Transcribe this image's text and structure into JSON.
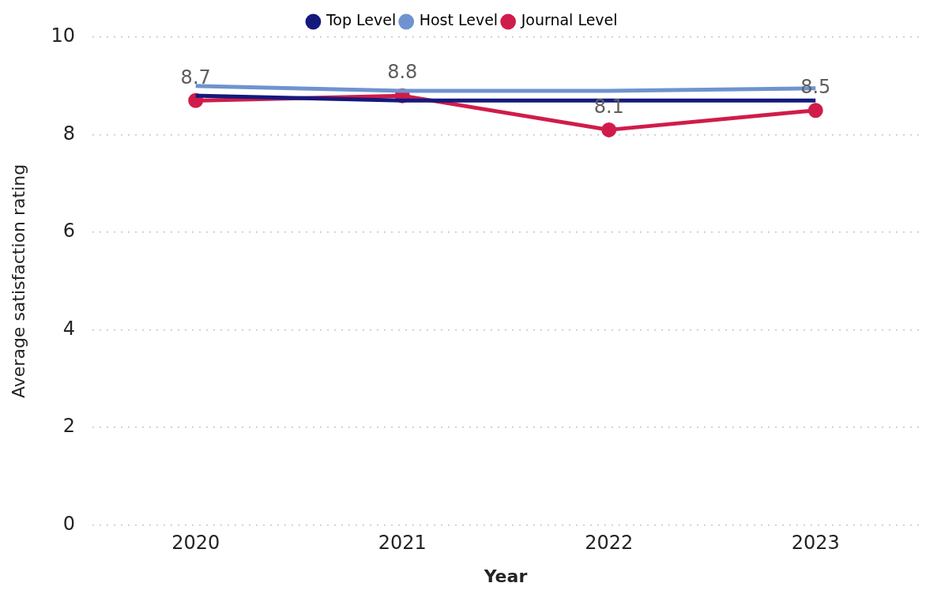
{
  "chart_data": {
    "type": "line",
    "xlabel": "Year",
    "ylabel": "Average satisfaction rating",
    "categories": [
      "2020",
      "2021",
      "2022",
      "2023"
    ],
    "series": [
      {
        "name": "Top Level",
        "color": "#14197d",
        "values": [
          8.8,
          8.7,
          8.7,
          8.7
        ],
        "marker": "none"
      },
      {
        "name": "Host Level",
        "color": "#6e93d0",
        "values": [
          9.0,
          8.9,
          8.9,
          8.95
        ],
        "marker": "none"
      },
      {
        "name": "Journal Level",
        "color": "#d01c4b",
        "values": [
          8.7,
          8.8,
          8.1,
          8.5
        ],
        "marker": "circle",
        "value_labels": [
          "8.7",
          "8.8",
          "8.1",
          "8.5"
        ]
      }
    ],
    "ylim": [
      0,
      10
    ],
    "yticks": [
      0,
      2,
      4,
      6,
      8,
      10
    ],
    "grid": "y",
    "legend": "top",
    "line_style": "solid"
  }
}
